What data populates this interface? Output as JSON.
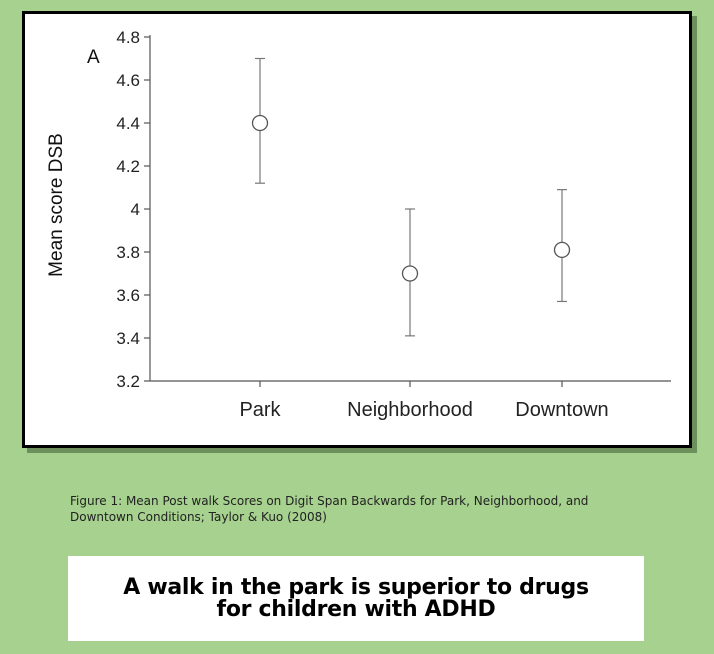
{
  "chart_data": {
    "type": "scatter",
    "panel_label": "A",
    "ylabel": "Mean score DSB",
    "xlabel": "",
    "ylim": [
      3.2,
      4.8
    ],
    "yticks": [
      "3.2",
      "3.4",
      "3.6",
      "3.8",
      "4",
      "4.2",
      "4.4",
      "4.6",
      "4.8"
    ],
    "categories": [
      "Park",
      "Neighborhood",
      "Downtown"
    ],
    "means": [
      4.4,
      3.7,
      3.81
    ],
    "error_low": [
      4.12,
      3.41,
      3.57
    ],
    "error_high": [
      4.7,
      4.0,
      4.09
    ],
    "grid": false
  },
  "caption": "Figure 1: Mean Post walk Scores on Digit Span Backwards for Park, Neighborhood, and Downtown Conditions; Taylor & Kuo (2008)",
  "headline": "A walk in the park is superior to drugs for children with ADHD",
  "colors": {
    "page_background": "#a6d18e",
    "marker_stroke": "#555555",
    "error_bar": "#777777"
  }
}
